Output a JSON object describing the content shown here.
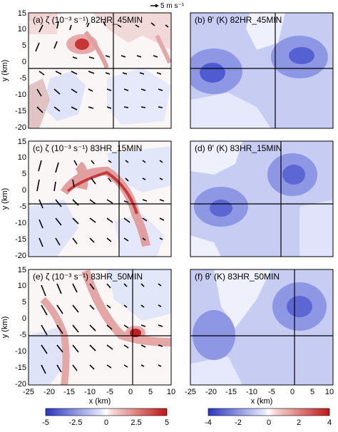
{
  "reference_vector_label": "5 m s⁻¹",
  "panels": [
    {
      "id": "a",
      "label": "(a) ζ (10⁻³ s⁻¹) 82HR_45MIN"
    },
    {
      "id": "b",
      "label": "(b) θ' (K) 82HR_45MIN"
    },
    {
      "id": "c",
      "label": "(c) ζ (10⁻³ s⁻¹) 83HR_15MIN"
    },
    {
      "id": "d",
      "label": "(d) θ' (K) 83HR_15MIN"
    },
    {
      "id": "e",
      "label": "(e) ζ (10⁻³ s⁻¹) 83HR_50MIN"
    },
    {
      "id": "f",
      "label": "(f) θ' (K) 83HR_50MIN"
    }
  ],
  "axes": {
    "ylabel": "y (km)",
    "xlabel": "x (km)",
    "y_ticks": [
      "15",
      "10",
      "5",
      "0",
      "-5",
      "-10",
      "-15",
      "-20"
    ],
    "x_ticks": [
      "-25",
      "-20",
      "-15",
      "-10",
      "-5",
      "0",
      "5",
      "10"
    ]
  },
  "colorbars": {
    "left_ticks": [
      "-5",
      "-2.5",
      "0",
      "2.5",
      "5"
    ],
    "right_ticks": [
      "-4",
      "-2",
      "0",
      "2",
      "4"
    ]
  },
  "colors": {
    "blue": "#3b48c9",
    "red": "#c62020"
  }
}
